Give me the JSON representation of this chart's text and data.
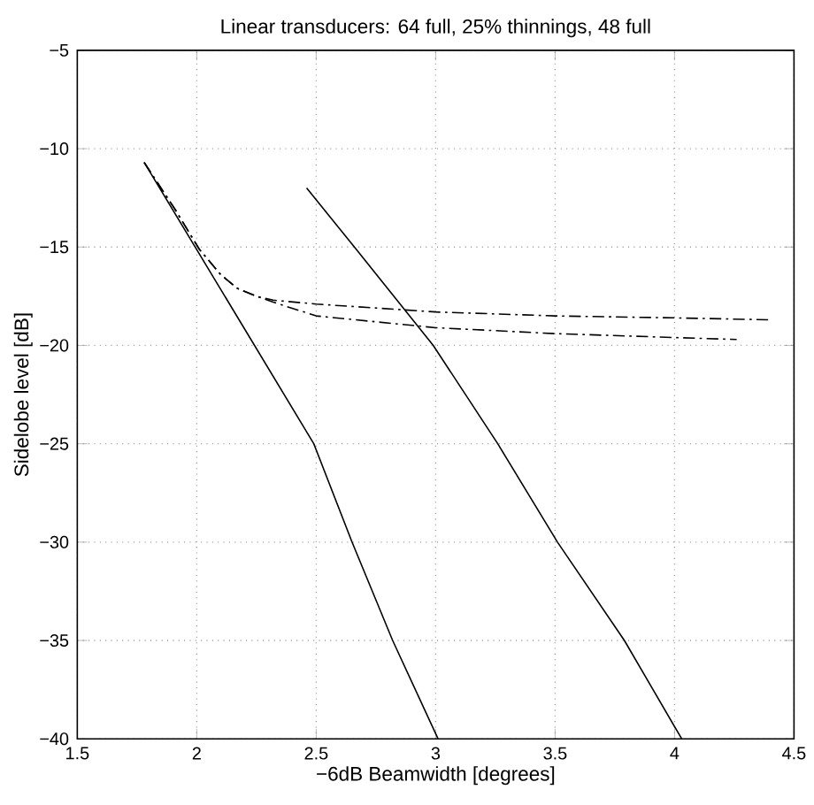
{
  "chart_data": {
    "type": "line",
    "title": "Linear transducers: 64 full, 25% thinnings, 48 full",
    "xlabel": "−6dB Beamwidth [degrees]",
    "ylabel": "Sidelobe level [dB]",
    "xlim": [
      1.5,
      4.5
    ],
    "ylim": [
      -40,
      -5
    ],
    "xticks": [
      1.5,
      2,
      2.5,
      3,
      3.5,
      4,
      4.5
    ],
    "yticks": [
      {
        "value": -40,
        "label": "−40"
      },
      {
        "value": -35,
        "label": "−35"
      },
      {
        "value": -30,
        "label": "−30"
      },
      {
        "value": -25,
        "label": "−25"
      },
      {
        "value": -20,
        "label": "−20"
      },
      {
        "value": -15,
        "label": "−15"
      },
      {
        "value": -10,
        "label": "−10"
      },
      {
        "value": -5,
        "label": "−5"
      }
    ],
    "grid": true,
    "series": [
      {
        "color": "#000000",
        "line_style": "solid",
        "x": [
          1.78,
          2.49,
          2.65,
          2.82,
          3.01
        ],
        "values": [
          -10.7,
          -25,
          -30,
          -35,
          -40
        ]
      },
      {
        "color": "#000000",
        "line_style": "solid",
        "x": [
          2.46,
          2.66,
          2.99,
          3.26,
          3.51,
          3.79,
          4.03
        ],
        "values": [
          -12,
          -15,
          -20,
          -25,
          -30,
          -35,
          -40
        ]
      },
      {
        "color": "#000000",
        "line_style": "dashdot",
        "x": [
          1.78,
          1.91,
          2.01,
          2.1,
          2.17,
          2.25,
          2.32,
          2.5,
          3,
          3.5,
          4,
          4.4
        ],
        "values": [
          -10.7,
          -13.1,
          -15.1,
          -16.4,
          -17.1,
          -17.5,
          -17.7,
          -17.9,
          -18.3,
          -18.5,
          -18.6,
          -18.7
        ]
      },
      {
        "color": "#000000",
        "line_style": "dashdot",
        "x": [
          1.78,
          1.91,
          2.01,
          2.1,
          2.17,
          2.25,
          2.32,
          2.5,
          3,
          3.5,
          4,
          4.26
        ],
        "values": [
          -10.7,
          -13.1,
          -15.1,
          -16.4,
          -17.1,
          -17.5,
          -17.8,
          -18.5,
          -19.1,
          -19.4,
          -19.6,
          -19.7
        ]
      }
    ]
  }
}
